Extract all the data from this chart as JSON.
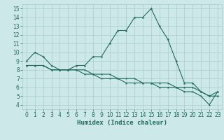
{
  "xlabel": "Humidex (Indice chaleur)",
  "bg_color": "#cce8e8",
  "grid_color": "#aacccc",
  "line_color": "#1e6b5e",
  "xlim": [
    -0.5,
    23.5
  ],
  "ylim": [
    3.5,
    15.5
  ],
  "yticks": [
    4,
    5,
    6,
    7,
    8,
    9,
    10,
    11,
    12,
    13,
    14,
    15
  ],
  "xticks": [
    0,
    1,
    2,
    3,
    4,
    5,
    6,
    7,
    8,
    9,
    10,
    11,
    12,
    13,
    14,
    15,
    16,
    17,
    18,
    19,
    20,
    21,
    22,
    23
  ],
  "line_main": [
    9.0,
    10.0,
    9.5,
    8.5,
    8.0,
    8.0,
    8.5,
    8.5,
    9.5,
    9.5,
    11.0,
    12.5,
    12.5,
    14.0,
    14.0,
    15.0,
    13.0,
    11.5,
    9.0,
    6.5,
    6.5,
    5.5,
    5.0,
    5.0
  ],
  "line_flat1": [
    8.5,
    8.5,
    8.5,
    8.0,
    8.0,
    8.0,
    8.0,
    8.0,
    7.5,
    7.5,
    7.5,
    7.0,
    7.0,
    7.0,
    6.5,
    6.5,
    6.5,
    6.5,
    6.0,
    6.0,
    6.0,
    5.5,
    5.0,
    5.5
  ],
  "line_flat2": [
    8.5,
    8.5,
    8.5,
    8.0,
    8.0,
    8.0,
    8.0,
    7.5,
    7.5,
    7.0,
    7.0,
    7.0,
    6.5,
    6.5,
    6.5,
    6.5,
    6.0,
    6.0,
    6.0,
    5.5,
    5.5,
    5.0,
    4.0,
    5.5
  ],
  "tick_fontsize": 5.5,
  "xlabel_fontsize": 6.5
}
